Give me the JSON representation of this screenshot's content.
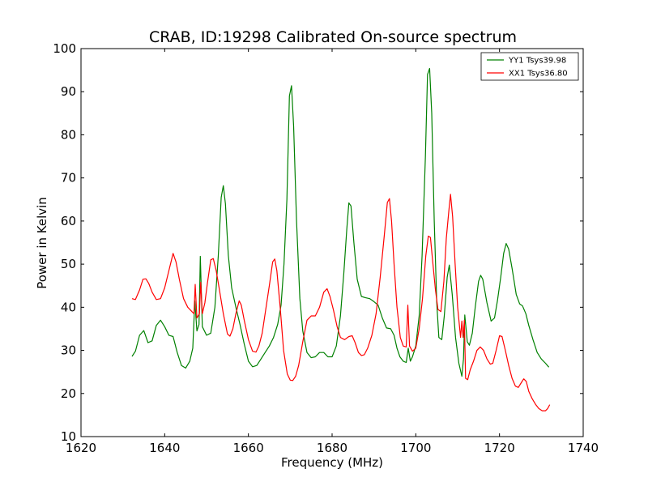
{
  "chart_data": {
    "type": "line",
    "title": "CRAB, ID:19298 Calibrated On-source spectrum",
    "xlabel": "Frequency (MHz)",
    "ylabel": "Power in Kelvin",
    "xlim": [
      1620,
      1740
    ],
    "ylim": [
      10,
      100
    ],
    "xticks": [
      "1620",
      "1640",
      "1660",
      "1680",
      "1700",
      "1720",
      "1740"
    ],
    "yticks": [
      "10",
      "20",
      "30",
      "40",
      "50",
      "60",
      "70",
      "80",
      "90",
      "100"
    ],
    "grid": false,
    "legend_position": "top-right",
    "series": [
      {
        "name": "YY1 Tsys39.98",
        "color": "#008000",
        "points": [
          [
            1632.2,
            28.6
          ],
          [
            1633.0,
            29.8
          ],
          [
            1634.0,
            33.5
          ],
          [
            1635.0,
            34.6
          ],
          [
            1636.0,
            31.8
          ],
          [
            1637.0,
            32.2
          ],
          [
            1638.0,
            35.8
          ],
          [
            1639.0,
            37.0
          ],
          [
            1640.0,
            35.5
          ],
          [
            1641.0,
            33.5
          ],
          [
            1642.0,
            33.2
          ],
          [
            1643.0,
            29.5
          ],
          [
            1644.0,
            26.5
          ],
          [
            1645.0,
            25.9
          ],
          [
            1646.0,
            27.5
          ],
          [
            1646.7,
            30.5
          ],
          [
            1647.2,
            41.5
          ],
          [
            1647.7,
            34.5
          ],
          [
            1648.2,
            36.0
          ],
          [
            1648.5,
            51.8
          ],
          [
            1649.0,
            35.5
          ],
          [
            1650.0,
            33.5
          ],
          [
            1651.0,
            34.0
          ],
          [
            1652.0,
            40.0
          ],
          [
            1652.8,
            52.0
          ],
          [
            1653.5,
            65.5
          ],
          [
            1654.0,
            68.2
          ],
          [
            1654.5,
            64.0
          ],
          [
            1655.2,
            52.0
          ],
          [
            1656.0,
            44.5
          ],
          [
            1657.0,
            40.0
          ],
          [
            1658.0,
            36.0
          ],
          [
            1659.0,
            31.5
          ],
          [
            1660.0,
            27.5
          ],
          [
            1661.0,
            26.2
          ],
          [
            1662.0,
            26.5
          ],
          [
            1663.0,
            28.0
          ],
          [
            1664.0,
            29.5
          ],
          [
            1665.0,
            31.0
          ],
          [
            1666.0,
            33.0
          ],
          [
            1667.0,
            36.0
          ],
          [
            1667.8,
            40.5
          ],
          [
            1668.5,
            50.0
          ],
          [
            1669.2,
            65.0
          ],
          [
            1669.8,
            89.0
          ],
          [
            1670.3,
            91.4
          ],
          [
            1670.8,
            82.0
          ],
          [
            1671.5,
            60.0
          ],
          [
            1672.3,
            42.0
          ],
          [
            1673.0,
            34.5
          ],
          [
            1674.0,
            29.5
          ],
          [
            1675.0,
            28.3
          ],
          [
            1676.0,
            28.5
          ],
          [
            1677.0,
            29.5
          ],
          [
            1678.0,
            29.5
          ],
          [
            1679.0,
            28.5
          ],
          [
            1680.0,
            28.5
          ],
          [
            1681.0,
            31.0
          ],
          [
            1682.0,
            38.0
          ],
          [
            1682.8,
            48.0
          ],
          [
            1683.5,
            58.0
          ],
          [
            1684.0,
            64.2
          ],
          [
            1684.5,
            63.5
          ],
          [
            1685.2,
            55.0
          ],
          [
            1686.0,
            46.5
          ],
          [
            1687.0,
            42.5
          ],
          [
            1688.0,
            42.2
          ],
          [
            1689.0,
            42.0
          ],
          [
            1690.0,
            41.3
          ],
          [
            1691.0,
            40.5
          ],
          [
            1692.0,
            37.5
          ],
          [
            1693.0,
            35.2
          ],
          [
            1694.0,
            35.0
          ],
          [
            1694.8,
            33.5
          ],
          [
            1695.5,
            30.5
          ],
          [
            1696.2,
            28.5
          ],
          [
            1697.0,
            27.5
          ],
          [
            1697.7,
            27.2
          ],
          [
            1698.2,
            30.5
          ],
          [
            1698.7,
            27.5
          ],
          [
            1699.2,
            28.5
          ],
          [
            1700.0,
            31.0
          ],
          [
            1700.8,
            38.0
          ],
          [
            1701.5,
            52.0
          ],
          [
            1702.3,
            75.0
          ],
          [
            1702.8,
            94.0
          ],
          [
            1703.3,
            95.4
          ],
          [
            1703.8,
            85.0
          ],
          [
            1704.4,
            60.0
          ],
          [
            1705.0,
            41.0
          ],
          [
            1705.5,
            33.0
          ],
          [
            1706.2,
            32.5
          ],
          [
            1706.8,
            38.0
          ],
          [
            1707.5,
            47.0
          ],
          [
            1708.0,
            49.8
          ],
          [
            1708.7,
            43.0
          ],
          [
            1709.5,
            33.0
          ],
          [
            1710.3,
            27.0
          ],
          [
            1711.0,
            24.0
          ],
          [
            1711.4,
            28.0
          ],
          [
            1711.7,
            38.2
          ],
          [
            1712.3,
            32.0
          ],
          [
            1712.8,
            31.2
          ],
          [
            1713.5,
            34.0
          ],
          [
            1714.2,
            40.0
          ],
          [
            1715.0,
            46.0
          ],
          [
            1715.5,
            47.4
          ],
          [
            1716.0,
            46.5
          ],
          [
            1717.0,
            41.0
          ],
          [
            1718.0,
            36.8
          ],
          [
            1718.8,
            37.5
          ],
          [
            1719.5,
            41.5
          ],
          [
            1720.3,
            47.0
          ],
          [
            1721.0,
            52.5
          ],
          [
            1721.6,
            54.8
          ],
          [
            1722.2,
            53.5
          ],
          [
            1723.0,
            49.0
          ],
          [
            1724.0,
            43.0
          ],
          [
            1724.8,
            40.8
          ],
          [
            1725.5,
            40.3
          ],
          [
            1726.3,
            38.5
          ],
          [
            1727.0,
            35.8
          ],
          [
            1728.0,
            32.5
          ],
          [
            1729.0,
            29.5
          ],
          [
            1730.0,
            28.0
          ],
          [
            1731.0,
            27.0
          ],
          [
            1731.8,
            26.1
          ]
        ]
      },
      {
        "name": "XX1 Tsys36.80",
        "color": "#ff0000",
        "points": [
          [
            1632.2,
            42.0
          ],
          [
            1633.0,
            41.8
          ],
          [
            1634.0,
            44.0
          ],
          [
            1634.8,
            46.5
          ],
          [
            1635.5,
            46.6
          ],
          [
            1636.2,
            45.5
          ],
          [
            1637.0,
            43.5
          ],
          [
            1638.0,
            41.8
          ],
          [
            1639.0,
            42.0
          ],
          [
            1640.0,
            44.5
          ],
          [
            1641.0,
            48.5
          ],
          [
            1642.0,
            52.5
          ],
          [
            1642.7,
            50.5
          ],
          [
            1643.5,
            46.5
          ],
          [
            1644.5,
            42.0
          ],
          [
            1645.5,
            40.0
          ],
          [
            1646.5,
            39.0
          ],
          [
            1647.0,
            38.5
          ],
          [
            1647.3,
            45.3
          ],
          [
            1647.7,
            37.5
          ],
          [
            1648.3,
            38.5
          ],
          [
            1648.6,
            45.8
          ],
          [
            1649.0,
            38.5
          ],
          [
            1649.6,
            41.0
          ],
          [
            1650.2,
            45.5
          ],
          [
            1651.0,
            51.0
          ],
          [
            1651.6,
            51.3
          ],
          [
            1652.3,
            48.5
          ],
          [
            1653.0,
            44.5
          ],
          [
            1654.0,
            38.5
          ],
          [
            1655.0,
            33.8
          ],
          [
            1655.6,
            33.3
          ],
          [
            1656.3,
            35.0
          ],
          [
            1657.0,
            38.5
          ],
          [
            1657.8,
            41.5
          ],
          [
            1658.3,
            40.5
          ],
          [
            1659.0,
            37.0
          ],
          [
            1660.0,
            32.5
          ],
          [
            1661.0,
            29.8
          ],
          [
            1661.8,
            29.6
          ],
          [
            1662.5,
            31.0
          ],
          [
            1663.3,
            34.0
          ],
          [
            1664.0,
            38.5
          ],
          [
            1665.0,
            45.0
          ],
          [
            1665.8,
            50.5
          ],
          [
            1666.3,
            51.2
          ],
          [
            1666.8,
            48.5
          ],
          [
            1667.6,
            40.0
          ],
          [
            1668.4,
            30.0
          ],
          [
            1669.3,
            24.5
          ],
          [
            1670.0,
            23.1
          ],
          [
            1670.6,
            23.0
          ],
          [
            1671.3,
            24.0
          ],
          [
            1672.0,
            26.5
          ],
          [
            1673.0,
            32.0
          ],
          [
            1674.0,
            37.0
          ],
          [
            1675.0,
            38.0
          ],
          [
            1676.0,
            38.0
          ],
          [
            1677.0,
            40.0
          ],
          [
            1678.0,
            43.5
          ],
          [
            1678.8,
            44.3
          ],
          [
            1679.5,
            42.5
          ],
          [
            1680.3,
            39.5
          ],
          [
            1681.2,
            35.5
          ],
          [
            1682.0,
            33.0
          ],
          [
            1683.0,
            32.5
          ],
          [
            1684.0,
            33.2
          ],
          [
            1684.8,
            33.4
          ],
          [
            1685.5,
            31.8
          ],
          [
            1686.3,
            29.5
          ],
          [
            1687.0,
            28.8
          ],
          [
            1687.7,
            29.0
          ],
          [
            1688.5,
            30.5
          ],
          [
            1689.5,
            33.5
          ],
          [
            1690.5,
            38.5
          ],
          [
            1691.5,
            47.0
          ],
          [
            1692.5,
            57.0
          ],
          [
            1693.2,
            64.3
          ],
          [
            1693.7,
            65.2
          ],
          [
            1694.2,
            60.0
          ],
          [
            1694.8,
            50.0
          ],
          [
            1695.5,
            40.0
          ],
          [
            1696.3,
            33.0
          ],
          [
            1697.0,
            31.0
          ],
          [
            1697.7,
            30.8
          ],
          [
            1698.1,
            40.5
          ],
          [
            1698.5,
            31.0
          ],
          [
            1699.2,
            29.8
          ],
          [
            1700.0,
            30.5
          ],
          [
            1700.8,
            35.0
          ],
          [
            1701.6,
            42.0
          ],
          [
            1702.4,
            52.0
          ],
          [
            1703.0,
            56.5
          ],
          [
            1703.5,
            56.2
          ],
          [
            1704.0,
            51.0
          ],
          [
            1704.7,
            44.0
          ],
          [
            1705.3,
            39.5
          ],
          [
            1706.0,
            39.0
          ],
          [
            1706.7,
            46.0
          ],
          [
            1707.3,
            56.0
          ],
          [
            1707.9,
            62.5
          ],
          [
            1708.3,
            66.2
          ],
          [
            1708.8,
            61.0
          ],
          [
            1709.4,
            50.0
          ],
          [
            1710.0,
            40.0
          ],
          [
            1710.7,
            33.0
          ],
          [
            1711.0,
            36.8
          ],
          [
            1711.3,
            33.0
          ],
          [
            1711.6,
            37.0
          ],
          [
            1711.9,
            23.5
          ],
          [
            1712.4,
            23.2
          ],
          [
            1713.0,
            25.5
          ],
          [
            1713.8,
            27.5
          ],
          [
            1714.6,
            30.0
          ],
          [
            1715.4,
            30.8
          ],
          [
            1716.2,
            30.0
          ],
          [
            1717.0,
            28.0
          ],
          [
            1717.8,
            26.8
          ],
          [
            1718.4,
            27.0
          ],
          [
            1719.2,
            30.0
          ],
          [
            1720.0,
            33.4
          ],
          [
            1720.6,
            33.2
          ],
          [
            1721.4,
            30.0
          ],
          [
            1722.2,
            26.5
          ],
          [
            1723.0,
            23.5
          ],
          [
            1723.8,
            21.7
          ],
          [
            1724.5,
            21.4
          ],
          [
            1725.2,
            22.5
          ],
          [
            1725.8,
            23.4
          ],
          [
            1726.4,
            22.8
          ],
          [
            1727.0,
            20.5
          ],
          [
            1727.8,
            18.8
          ],
          [
            1728.6,
            17.5
          ],
          [
            1729.4,
            16.5
          ],
          [
            1730.2,
            16.0
          ],
          [
            1731.0,
            16.0
          ],
          [
            1731.5,
            16.5
          ],
          [
            1732.0,
            17.4
          ]
        ]
      }
    ]
  }
}
